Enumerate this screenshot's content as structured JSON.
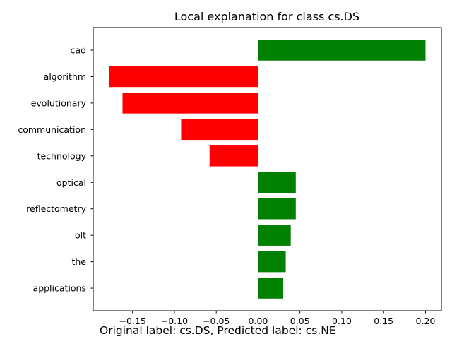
{
  "caption": "Original label: cs.DS, Predicted label: cs.NE",
  "colors": {
    "positive": "#008000",
    "negative": "#ff0000"
  },
  "chart_data": {
    "type": "bar",
    "orientation": "horizontal",
    "title": "Local explanation for class cs.DS",
    "xlabel": "",
    "ylabel": "",
    "xlim": [
      -0.197,
      0.219
    ],
    "xticks": [
      -0.15,
      -0.1,
      -0.05,
      0.0,
      0.05,
      0.1,
      0.15,
      0.2
    ],
    "xtick_labels": [
      "−0.15",
      "−0.10",
      "−0.05",
      "0.00",
      "0.05",
      "0.10",
      "0.15",
      "0.20"
    ],
    "grid": false,
    "categories": [
      "cad",
      "algorithm",
      "evolutionary",
      "communication",
      "technology",
      "optical",
      "reflectometry",
      "olt",
      "the",
      "applications"
    ],
    "values": [
      0.2,
      -0.178,
      -0.162,
      -0.092,
      -0.058,
      0.045,
      0.045,
      0.039,
      0.033,
      0.03
    ]
  }
}
